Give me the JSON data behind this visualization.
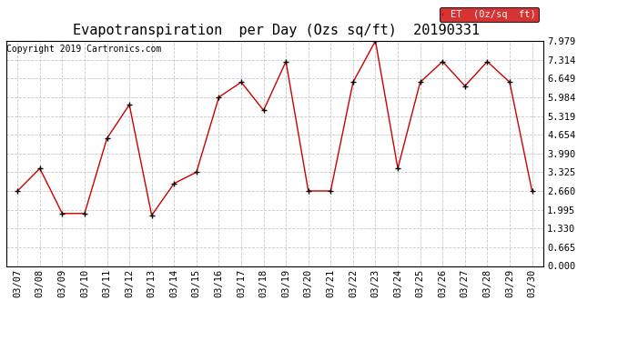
{
  "title": "Evapotranspiration  per Day (Ozs sq/ft)  20190331",
  "copyright": "Copyright 2019 Cartronics.com",
  "legend_label": "ET  (0z/sq  ft)",
  "dates": [
    "03/07",
    "03/08",
    "03/09",
    "03/10",
    "03/11",
    "03/12",
    "03/13",
    "03/14",
    "03/15",
    "03/16",
    "03/17",
    "03/18",
    "03/19",
    "03/20",
    "03/21",
    "03/22",
    "03/23",
    "03/24",
    "03/25",
    "03/26",
    "03/27",
    "03/28",
    "03/29",
    "03/30"
  ],
  "values": [
    2.66,
    3.458,
    1.862,
    1.862,
    4.522,
    5.718,
    1.796,
    2.926,
    3.325,
    5.984,
    6.517,
    5.519,
    7.248,
    2.66,
    2.66,
    6.517,
    7.979,
    3.458,
    6.516,
    7.248,
    6.383,
    7.248,
    6.516,
    2.66
  ],
  "y_ticks": [
    0.0,
    0.665,
    1.33,
    1.995,
    2.66,
    3.325,
    3.99,
    4.654,
    5.319,
    5.984,
    6.649,
    7.314,
    7.979
  ],
  "line_color": "#cc0000",
  "marker_color": "#000000",
  "grid_color": "#c8c8c8",
  "bg_color": "#ffffff",
  "legend_bg": "#cc0000",
  "legend_text_color": "#ffffff",
  "title_fontsize": 11,
  "copyright_fontsize": 7,
  "tick_fontsize": 7.5,
  "ylim": [
    0.0,
    7.979
  ]
}
